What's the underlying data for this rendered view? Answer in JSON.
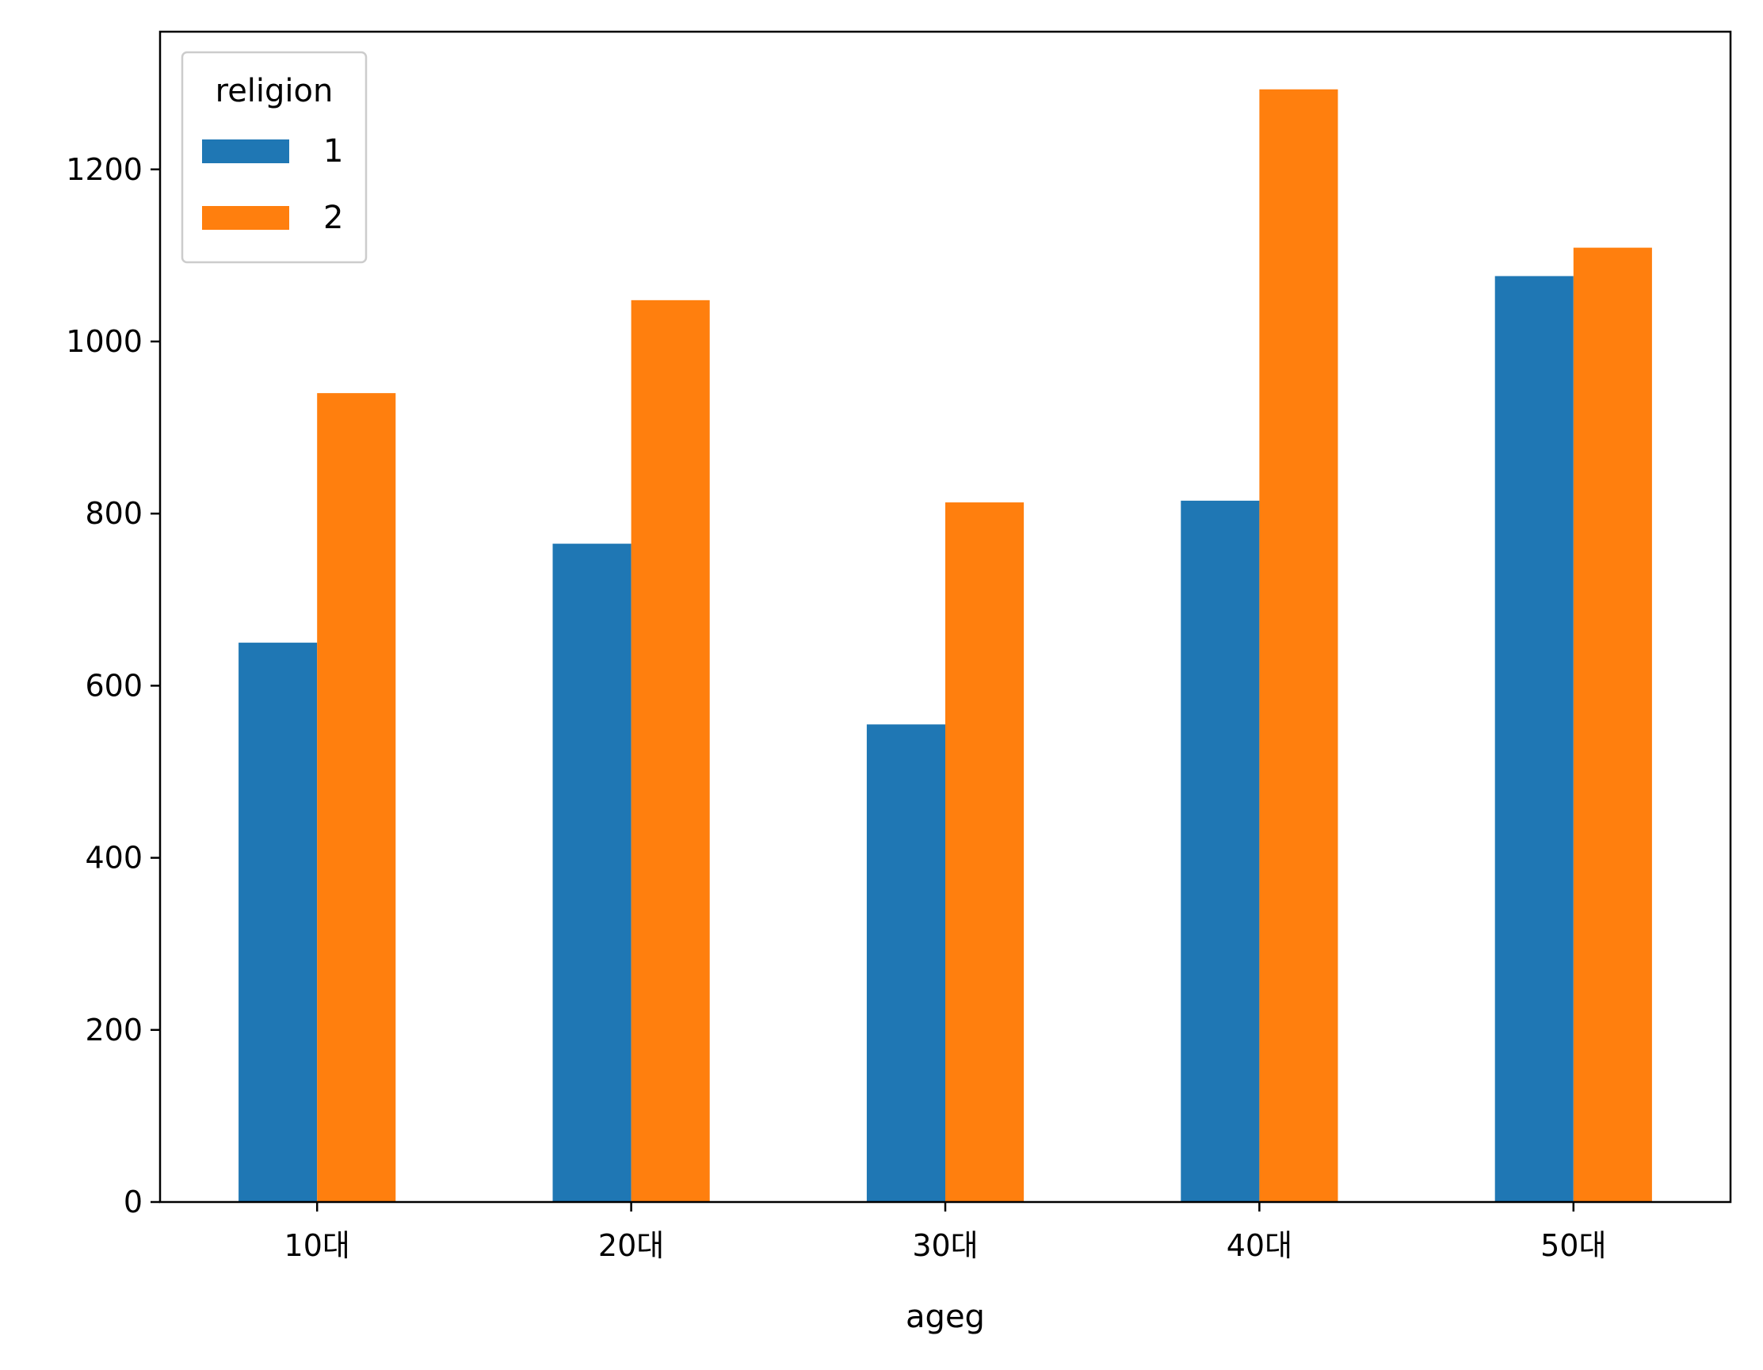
{
  "chart_data": {
    "type": "bar",
    "categories": [
      "10대",
      "20대",
      "30대",
      "40대",
      "50대"
    ],
    "series": [
      {
        "name": "1",
        "values": [
          650,
          765,
          555,
          815,
          1076
        ],
        "color": "#1f77b4"
      },
      {
        "name": "2",
        "values": [
          940,
          1048,
          813,
          1293,
          1109
        ],
        "color": "#ff7f0e"
      }
    ],
    "title": "",
    "xlabel": "ageg",
    "ylabel": "",
    "ylim": [
      0,
      1360
    ],
    "yticks": [
      0,
      200,
      400,
      600,
      800,
      1000,
      1200
    ],
    "legend": {
      "title": "religion",
      "placement": "top-left"
    },
    "grid": false
  }
}
